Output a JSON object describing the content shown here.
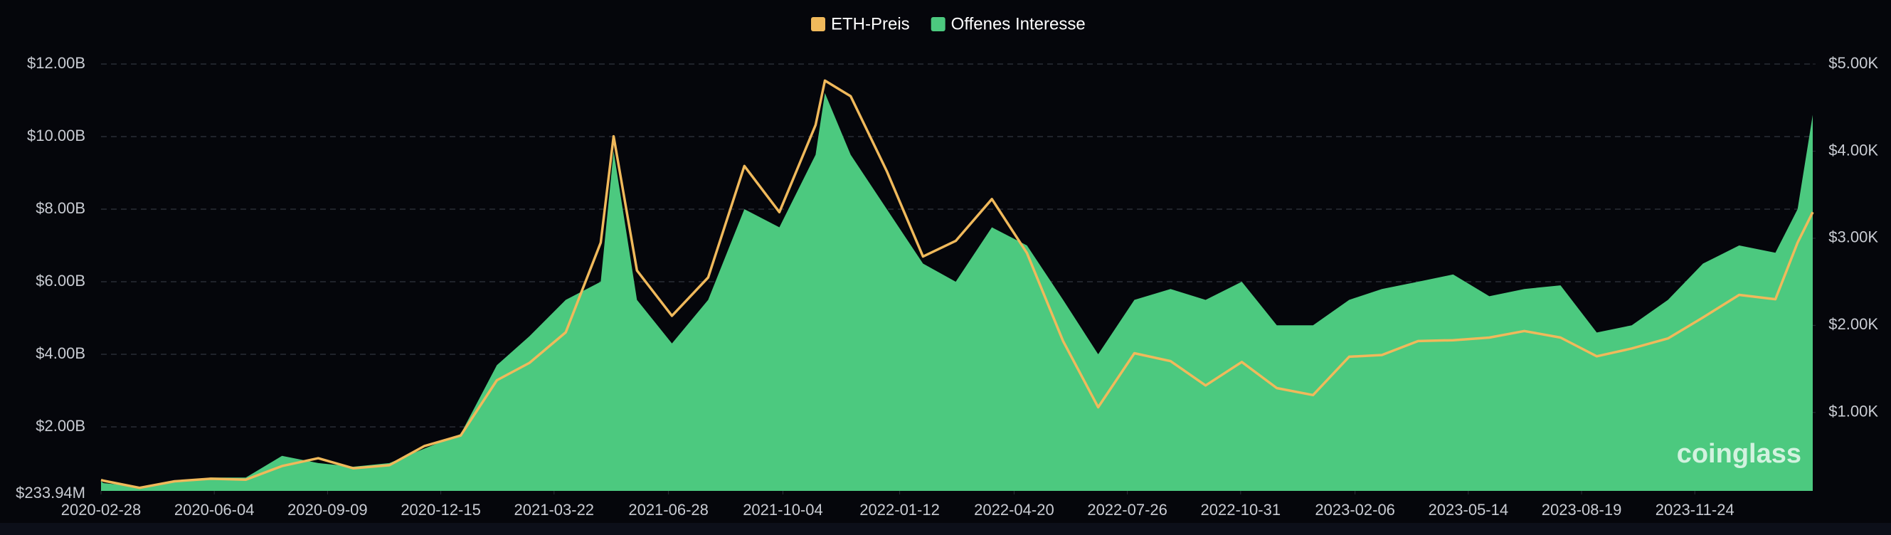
{
  "chart_data": {
    "type": "line",
    "watermark": "coinglass",
    "legend": "top",
    "grid": true,
    "x": [
      "2020-02-28",
      "2020-03-01",
      "2020-04-01",
      "2020-05-01",
      "2020-06-01",
      "2020-07-01",
      "2020-08-01",
      "2020-09-01",
      "2020-10-01",
      "2020-11-01",
      "2020-12-01",
      "2021-01-01",
      "2021-02-01",
      "2021-03-01",
      "2021-04-01",
      "2021-05-01",
      "2021-05-12",
      "2021-06-01",
      "2021-07-01",
      "2021-08-01",
      "2021-09-01",
      "2021-10-01",
      "2021-11-01",
      "2021-11-09",
      "2021-12-01",
      "2022-01-01",
      "2022-02-01",
      "2022-03-01",
      "2022-04-01",
      "2022-05-01",
      "2022-06-01",
      "2022-07-01",
      "2022-08-01",
      "2022-09-01",
      "2022-10-01",
      "2022-11-01",
      "2022-12-01",
      "2023-01-01",
      "2023-02-01",
      "2023-03-01",
      "2023-04-01",
      "2023-05-01",
      "2023-06-01",
      "2023-07-01",
      "2023-08-01",
      "2023-09-01",
      "2023-10-01",
      "2023-11-01",
      "2023-12-01",
      "2024-01-01",
      "2024-02-01",
      "2024-02-20",
      "2024-03-04"
    ],
    "xlim": [
      "2020-02-28",
      "2024-03-04"
    ],
    "xticks": [
      "2020-02-28",
      "2020-06-04",
      "2020-09-09",
      "2020-12-15",
      "2021-03-22",
      "2021-06-28",
      "2021-10-04",
      "2022-01-12",
      "2022-04-20",
      "2022-07-26",
      "2022-10-31",
      "2023-02-06",
      "2023-05-14",
      "2023-08-19",
      "2023-11-24"
    ],
    "ylim": [
      233940000,
      12000000000
    ],
    "yticks": [
      {
        "value": 233940000,
        "label": "$233.94M"
      },
      {
        "value": 2000000000,
        "label": "$2.00B"
      },
      {
        "value": 4000000000,
        "label": "$4.00B"
      },
      {
        "value": 6000000000,
        "label": "$6.00B"
      },
      {
        "value": 8000000000,
        "label": "$8.00B"
      },
      {
        "value": 10000000000,
        "label": "$10.00B"
      },
      {
        "value": 12000000000,
        "label": "$12.00B"
      }
    ],
    "y2lim": [
      100,
      5000
    ],
    "y2ticks": [
      {
        "value": 1000,
        "label": "$1.00K"
      },
      {
        "value": 2000,
        "label": "$2.00K"
      },
      {
        "value": 3000,
        "label": "$3.00K"
      },
      {
        "value": 4000,
        "label": "$4.00K"
      },
      {
        "value": 5000,
        "label": "$5.00K"
      }
    ],
    "series": [
      {
        "name": "ETH-Preis",
        "color": "#f0b95b",
        "type": "line",
        "axis": "y2",
        "values": [
          225,
          218,
          135,
          210,
          240,
          228,
          385,
          475,
          360,
          395,
          615,
          735,
          1370,
          1570,
          1920,
          2950,
          4170,
          2630,
          2110,
          2550,
          3830,
          3300,
          4300,
          4810,
          4630,
          3770,
          2790,
          2970,
          3450,
          2830,
          1820,
          1060,
          1680,
          1590,
          1310,
          1580,
          1280,
          1200,
          1640,
          1660,
          1820,
          1830,
          1860,
          1935,
          1860,
          1645,
          1735,
          1850,
          2090,
          2350,
          2300,
          2950,
          3300
        ]
      },
      {
        "name": "Offenes Interesse",
        "color": "#4cc97f",
        "type": "area",
        "axis": "y",
        "values": [
          500000000,
          450000000,
          350000000,
          500000000,
          600000000,
          600000000,
          1200000000,
          1000000000,
          900000000,
          1000000000,
          1400000000,
          1800000000,
          3700000000,
          4500000000,
          5500000000,
          6000000000,
          9600000000,
          5500000000,
          4300000000,
          5500000000,
          8000000000,
          7500000000,
          9500000000,
          11200000000,
          9500000000,
          8000000000,
          6500000000,
          6000000000,
          7500000000,
          7000000000,
          5500000000,
          4000000000,
          5500000000,
          5800000000,
          5500000000,
          6000000000,
          4800000000,
          4800000000,
          5500000000,
          5800000000,
          6000000000,
          6200000000,
          5600000000,
          5800000000,
          5900000000,
          4600000000,
          4800000000,
          5500000000,
          6500000000,
          7000000000,
          6800000000,
          8000000000,
          10600000000
        ]
      }
    ]
  }
}
